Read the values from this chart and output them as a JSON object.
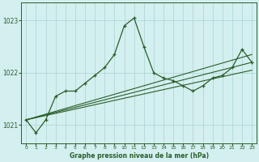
{
  "title": "Graphe pression niveau de la mer (hPa)",
  "bg_color": "#d4efef",
  "grid_color": "#b0d8d8",
  "line_color": "#2a5e2a",
  "xlim": [
    -0.5,
    23.5
  ],
  "ylim": [
    1020.65,
    1023.35
  ],
  "yticks": [
    1021,
    1022,
    1023
  ],
  "xticks": [
    0,
    1,
    2,
    3,
    4,
    5,
    6,
    7,
    8,
    9,
    10,
    11,
    12,
    13,
    14,
    15,
    16,
    17,
    18,
    19,
    20,
    21,
    22,
    23
  ],
  "main_series": {
    "x": [
      0,
      1,
      2,
      3,
      4,
      5,
      6,
      7,
      8,
      9,
      10,
      11,
      12,
      13,
      14,
      15,
      16,
      17,
      18,
      19,
      20,
      21,
      22,
      23
    ],
    "y": [
      1021.1,
      1020.85,
      1021.1,
      1021.55,
      1021.65,
      1021.65,
      1021.8,
      1021.95,
      1022.1,
      1022.35,
      1022.9,
      1023.05,
      1022.5,
      1022.0,
      1021.9,
      1021.85,
      1021.75,
      1021.65,
      1021.75,
      1021.9,
      1021.95,
      1022.1,
      1022.45,
      1022.2
    ]
  },
  "trend1": {
    "x": [
      0,
      23
    ],
    "y": [
      1021.1,
      1022.35
    ]
  },
  "trend2": {
    "x": [
      0,
      23
    ],
    "y": [
      1021.1,
      1022.2
    ]
  },
  "trend3": {
    "x": [
      0,
      23
    ],
    "y": [
      1021.1,
      1022.05
    ]
  }
}
